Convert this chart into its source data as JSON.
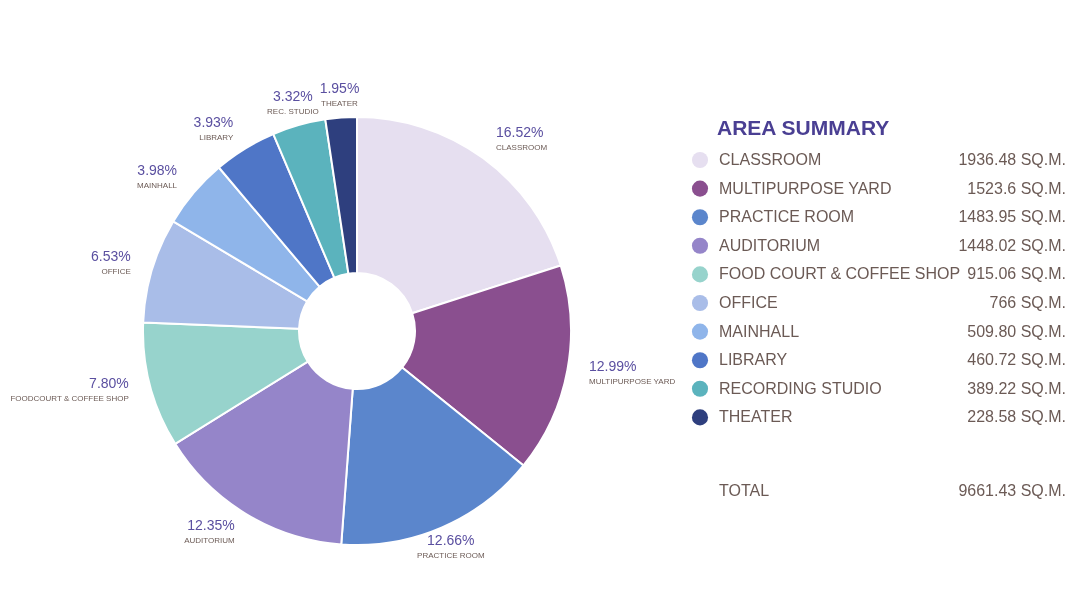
{
  "chart_data": {
    "type": "donut",
    "legend_title": "AREA SUMMARY",
    "legend": "right",
    "categories": [
      "CLASSROOM",
      "MULTIPURPOSE YARD",
      "PRACTICE ROOM",
      "AUDITORIUM",
      "FOOD COURT & COFFEE SHOP",
      "OFFICE",
      "MAINHALL",
      "LIBRARY",
      "RECORDING STUDIO",
      "THEATER"
    ],
    "values": [
      1936.48,
      1523.6,
      1483.95,
      1448.02,
      915.06,
      766,
      509.8,
      460.72,
      389.22,
      228.58
    ],
    "value_labels": [
      "1936.48 SQ.M.",
      "1523.6 SQ.M.",
      "1483.95 SQ.M.",
      "1448.02 SQ.M.",
      "915.06 SQ.M.",
      "766 SQ.M.",
      "509.80 SQ.M.",
      "460.72 SQ.M.",
      "389.22 SQ.M.",
      "228.58 SQ.M."
    ],
    "colors": [
      "#e6dff0",
      "#8a4f8f",
      "#5b86cc",
      "#9585c9",
      "#97d3cc",
      "#a9bde8",
      "#8fb5ea",
      "#4f76c7",
      "#5bb3bd",
      "#2e3f7e"
    ],
    "annotations": [
      "16.52%",
      "CLASSROOM",
      "12.99%",
      "MULTIPURPOSE YARD",
      "12.66%",
      "PRACTICE ROOM",
      "12.35%",
      "AUDITORIUM",
      "7.80%",
      "FOODCOURT & COFFEE SHOP",
      "6.53%",
      "OFFICE",
      "3.98%",
      "MAINHALL",
      "3.93%",
      "LIBRARY",
      "3.32%",
      "REC. STUDIO",
      "1.95%",
      "THEATER",
      "TOTAL",
      "9661.43 SQ.M."
    ]
  }
}
